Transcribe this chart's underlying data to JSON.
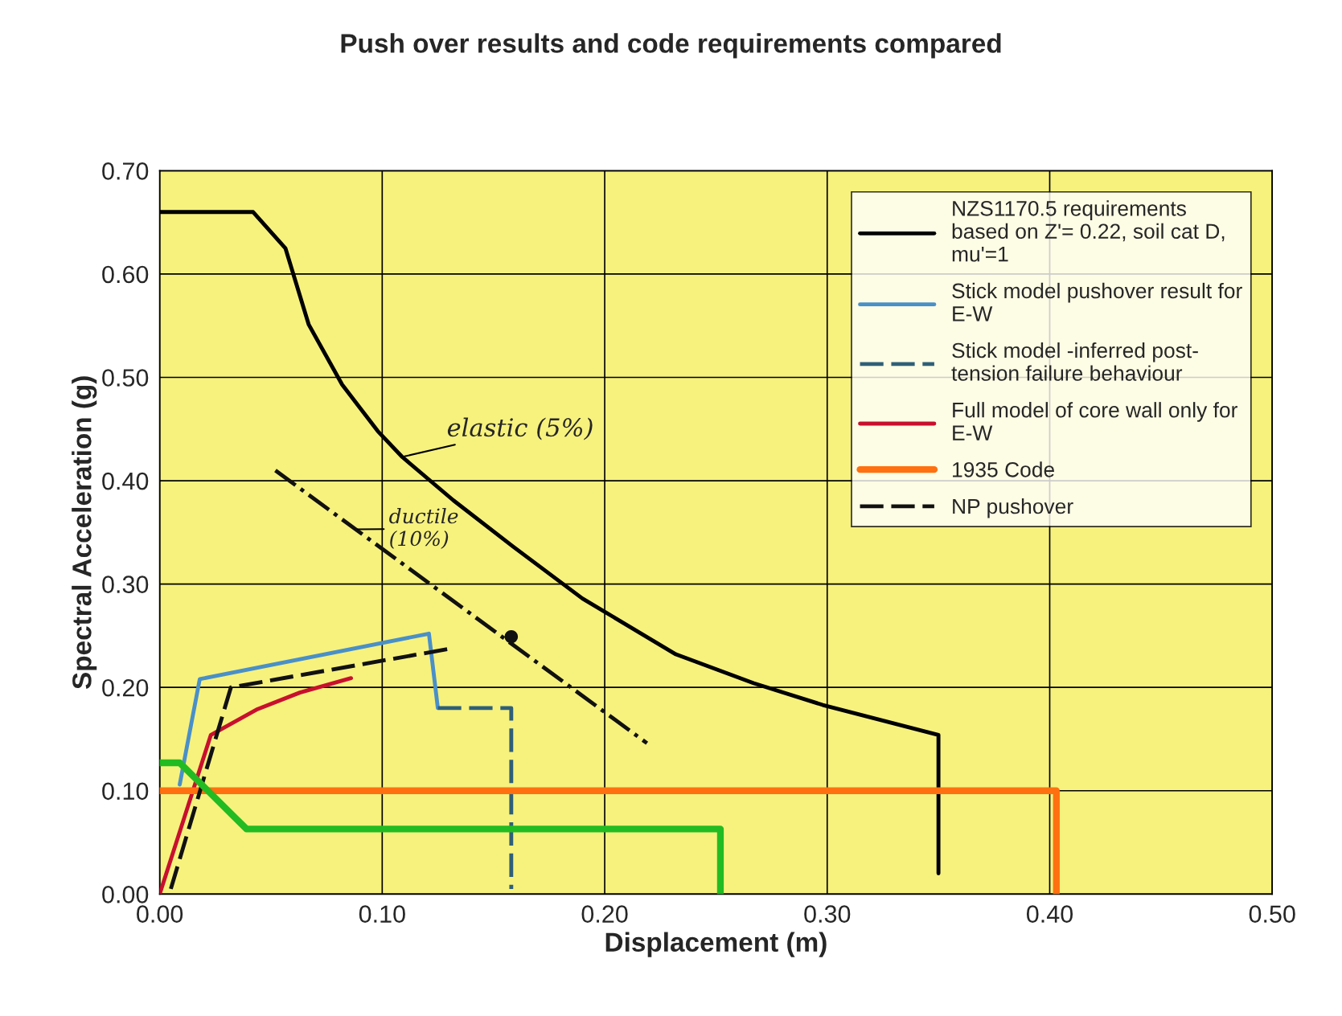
{
  "chart_data": {
    "type": "line",
    "title": "Push over results and code requirements compared",
    "xlabel": "Displacement (m)",
    "ylabel": "Spectral Acceleration (g)",
    "xlim": [
      0,
      0.5
    ],
    "ylim": [
      0,
      0.7
    ],
    "xticks": [
      {
        "value": 0,
        "label": "0.00"
      },
      {
        "value": 0.1,
        "label": "0.10"
      },
      {
        "value": 0.2,
        "label": "0.20"
      },
      {
        "value": 0.3,
        "label": "0.30"
      },
      {
        "value": 0.4,
        "label": "0.40"
      },
      {
        "value": 0.5,
        "label": "0.50"
      }
    ],
    "yticks": [
      {
        "value": 0,
        "label": "0.00"
      },
      {
        "value": 0.1,
        "label": "0.10"
      },
      {
        "value": 0.2,
        "label": "0.20"
      },
      {
        "value": 0.3,
        "label": "0.30"
      },
      {
        "value": 0.4,
        "label": "0.40"
      },
      {
        "value": 0.5,
        "label": "0.50"
      },
      {
        "value": 0.6,
        "label": "0.60"
      },
      {
        "value": 0.7,
        "label": "0.70"
      }
    ],
    "grid": true,
    "legend": "top right",
    "series": [
      {
        "name": "NZS1170.5 requirements\nbased on Z'= 0.22, soil cat D,\nmu'=1",
        "color": "#000000",
        "line_style": "solid",
        "x": [
          0,
          0.042,
          0.0565,
          0.067,
          0.082,
          0.098,
          0.109,
          0.132,
          0.159,
          0.19,
          0.232,
          0.267,
          0.298,
          0.35,
          0.35
        ],
        "values": [
          0.66,
          0.66,
          0.625,
          0.551,
          0.493,
          0.448,
          0.423,
          0.381,
          0.336,
          0.286,
          0.232,
          0.204,
          0.183,
          0.154,
          0.02
        ]
      },
      {
        "name": "Stick model pushover result for\nE-W",
        "color": "#4a90c8",
        "line_style": "solid",
        "x": [
          0.009,
          0.018,
          0.121,
          0.125
        ],
        "values": [
          0.106,
          0.208,
          0.252,
          0.18
        ]
      },
      {
        "name": "Stick model -inferred post-\ntension failure behaviour",
        "color": "#2f5f78",
        "line_style": "dashed",
        "x": [
          0.125,
          0.158,
          0.158
        ],
        "values": [
          0.18,
          0.18,
          0.005
        ]
      },
      {
        "name": "Full model of core wall only for\nE-W",
        "color": "#c8102e",
        "line_style": "solid",
        "x": [
          0,
          0.023,
          0.044,
          0.063,
          0.086
        ],
        "values": [
          0,
          0.154,
          0.179,
          0.195,
          0.209
        ]
      },
      {
        "name": "1935 Code",
        "color": "#ff7010",
        "line_style": "solid",
        "x": [
          0,
          0.403,
          0.403
        ],
        "values": [
          0.1,
          0.1,
          0
        ]
      },
      {
        "name": "NP pushover",
        "color": "#111111",
        "line_style": "dashed",
        "x": [
          0.005,
          0.032,
          0.132
        ],
        "values": [
          0.005,
          0.2,
          0.238
        ]
      },
      {
        "color": "#22bb22",
        "line_style": "solid",
        "x": [
          0,
          0.009,
          0.039,
          0.252,
          0.252
        ],
        "values": [
          0.127,
          0.127,
          0.063,
          0.063,
          0
        ]
      },
      {
        "color": "#111111",
        "line_style": "dashdot",
        "x": [
          0.052,
          0.219
        ],
        "values": [
          0.41,
          0.146
        ]
      },
      {
        "type": "scatter",
        "color": "#111111",
        "marker": "circle",
        "x": [
          0.158
        ],
        "values": [
          0.249
        ]
      }
    ],
    "annotations": [
      {
        "text": "elastic (5%)",
        "x": 0.109,
        "y": 0.423
      },
      {
        "text": "ductile\n(10%)",
        "x": 0.088,
        "y": 0.353
      }
    ]
  }
}
